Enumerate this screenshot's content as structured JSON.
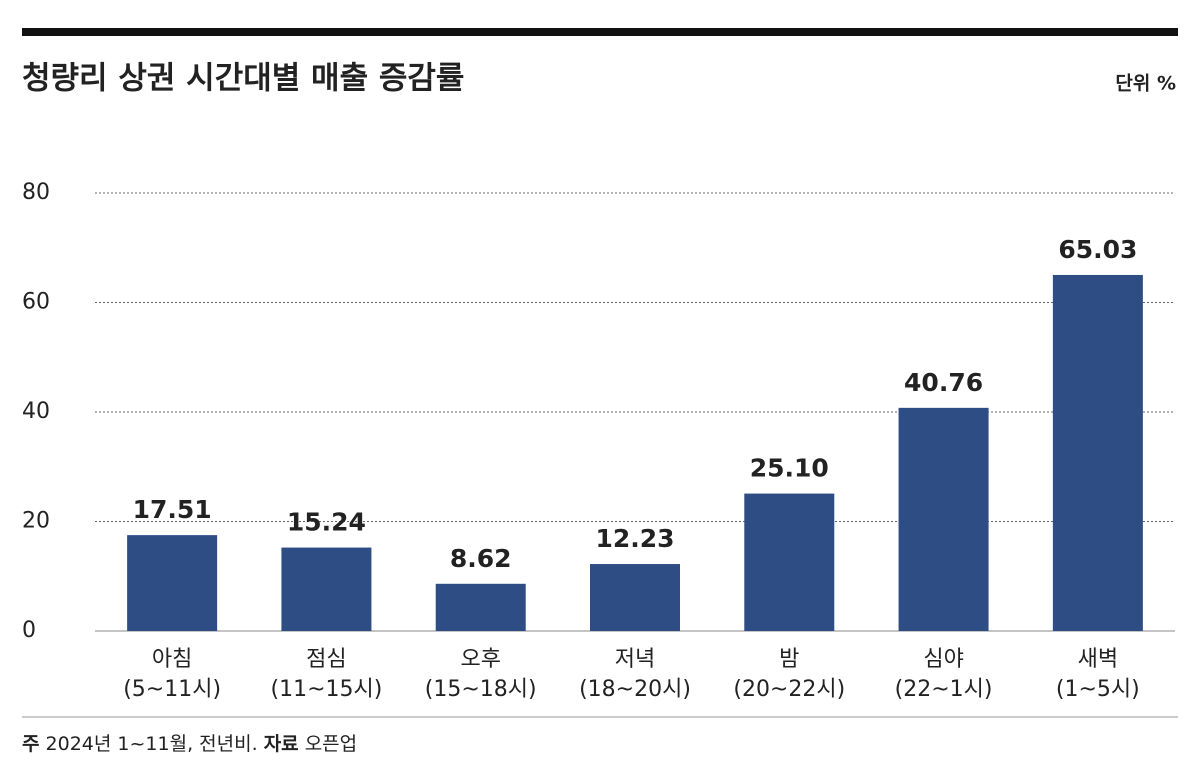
{
  "chart_data": {
    "type": "bar",
    "title": "청량리 상권 시간대별 매출 증감률",
    "unit": "단위 %",
    "categories": [
      "아침\n(5~11시)",
      "점심\n(11~15시)",
      "오후\n(15~18시)",
      "저녁\n(18~20시)",
      "밤\n(20~22시)",
      "심야\n(22~1시)",
      "새벽\n(1~5시)"
    ],
    "values": [
      17.51,
      15.24,
      8.62,
      12.23,
      25.1,
      40.76,
      65.03
    ],
    "value_labels": [
      "17.51",
      "15.24",
      "8.62",
      "12.23",
      "25.10",
      "40.76",
      "65.03"
    ],
    "color": "#2d4d84",
    "label_color": "#1f4e8c",
    "ylim": [
      0,
      80
    ],
    "yticks": [
      0,
      20,
      40,
      60,
      80
    ],
    "grid": true,
    "note_label": "주",
    "note": "2024년 1~11월, 전년비.",
    "source_label": "자료",
    "source": "오픈업"
  }
}
